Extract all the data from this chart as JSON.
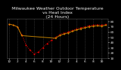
{
  "title": "Milwaukee Weather Outdoor Temperature\nvs Heat Index\n(24 Hours)",
  "background_color": "#000000",
  "plot_bg_color": "#000000",
  "text_color": "#ffffff",
  "hours": [
    0,
    1,
    2,
    3,
    4,
    5,
    6,
    7,
    8,
    9,
    10,
    11,
    12,
    13,
    14,
    15,
    16,
    17,
    18,
    19,
    20,
    21,
    22,
    23
  ],
  "temp": [
    75,
    73,
    70,
    55,
    35,
    25,
    18,
    22,
    30,
    38,
    44,
    50,
    55,
    58,
    60,
    63,
    66,
    68,
    70,
    72,
    73,
    74,
    73,
    75
  ],
  "heat_index": [
    75,
    73,
    70,
    53,
    null,
    null,
    null,
    null,
    null,
    null,
    null,
    48,
    53,
    56,
    58,
    61,
    64,
    66,
    68,
    70,
    71,
    72,
    71,
    73
  ],
  "temp_color": "#ff0000",
  "heat_color": "#cc8800",
  "ylim": [
    10,
    85
  ],
  "xlim": [
    -0.5,
    23.5
  ],
  "yticks": [
    10,
    20,
    30,
    40,
    50,
    60,
    70,
    80
  ],
  "xtick_positions": [
    0,
    2,
    4,
    6,
    8,
    10,
    12,
    14,
    16,
    18,
    20,
    22
  ],
  "xtick_labels": [
    "12",
    "2",
    "4",
    "6",
    "8",
    "10",
    "12",
    "2",
    "4",
    "6",
    "8",
    "10"
  ],
  "title_fontsize": 4.5,
  "tick_fontsize": 3.2,
  "grid_color": "#555555"
}
